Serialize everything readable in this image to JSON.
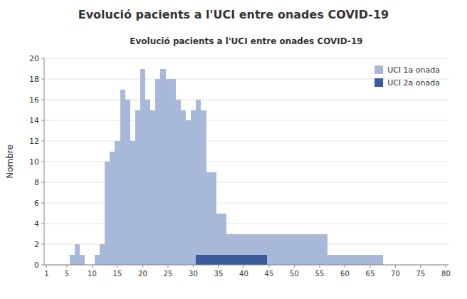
{
  "chart_data": {
    "type": "area",
    "title": "Evolució pacients a l'UCI entre onades COVID-19",
    "subtitle": "Evolució pacients a l'UCI entre onades COVID-19",
    "y_label": "Nombre",
    "categories": [
      "1",
      null,
      null,
      null,
      "5",
      null,
      null,
      null,
      null,
      "10",
      null,
      null,
      null,
      null,
      "15",
      null,
      null,
      null,
      null,
      "20",
      null,
      null,
      null,
      null,
      "25",
      null,
      null,
      null,
      null,
      "30",
      null,
      null,
      null,
      null,
      "35",
      null,
      null,
      null,
      null,
      "40",
      null,
      null,
      null,
      null,
      "45",
      null,
      null,
      null,
      null,
      "50",
      null,
      null,
      null,
      null,
      "55",
      null,
      null,
      null,
      null,
      "60",
      null,
      null,
      null,
      null,
      "65",
      null,
      null,
      null,
      null,
      "70",
      null,
      null,
      null,
      null,
      "75",
      null,
      null,
      null,
      null,
      "80"
    ],
    "series": [
      {
        "name": "UCI 1a onada",
        "color": "#a8b8d8",
        "values": [
          0,
          0,
          0,
          0,
          0,
          1,
          2,
          1,
          0,
          0,
          1,
          2,
          10,
          11,
          12,
          17,
          16,
          12,
          15,
          19,
          16,
          15,
          18,
          19,
          18,
          18,
          16,
          15,
          14,
          15,
          16,
          15,
          9,
          9,
          5,
          5,
          3,
          3,
          3,
          3,
          3,
          3,
          3,
          3,
          3,
          3,
          3,
          3,
          3,
          3,
          3,
          3,
          3,
          3,
          3,
          3,
          1,
          1,
          1,
          1,
          1,
          1,
          1,
          1,
          1,
          1,
          1,
          0,
          0,
          0,
          0,
          0,
          0,
          0,
          0,
          0,
          0,
          0,
          0,
          0
        ]
      },
      {
        "name": "UCI 2a onada",
        "color": "#3a5a9c",
        "values": [
          0,
          0,
          0,
          0,
          0,
          0,
          0,
          0,
          0,
          0,
          0,
          0,
          0,
          0,
          0,
          0,
          0,
          0,
          0,
          0,
          0,
          0,
          0,
          0,
          0,
          0,
          0,
          0,
          0,
          0,
          1,
          1,
          1,
          1,
          1,
          1,
          1,
          1,
          1,
          1,
          1,
          1,
          1,
          1,
          0,
          0,
          0,
          0,
          0,
          0,
          0,
          0,
          0,
          0,
          0,
          0,
          0,
          0,
          0,
          0,
          0,
          0,
          0,
          0,
          0,
          0,
          0,
          0,
          0,
          0,
          0,
          0,
          0,
          0,
          0,
          0,
          0,
          0,
          0,
          0
        ]
      }
    ],
    "ylim": [
      0,
      20
    ],
    "yticks": [
      0,
      2,
      4,
      6,
      8,
      10,
      12,
      14,
      16,
      18,
      20
    ],
    "grid": true,
    "legend": "upper right"
  }
}
